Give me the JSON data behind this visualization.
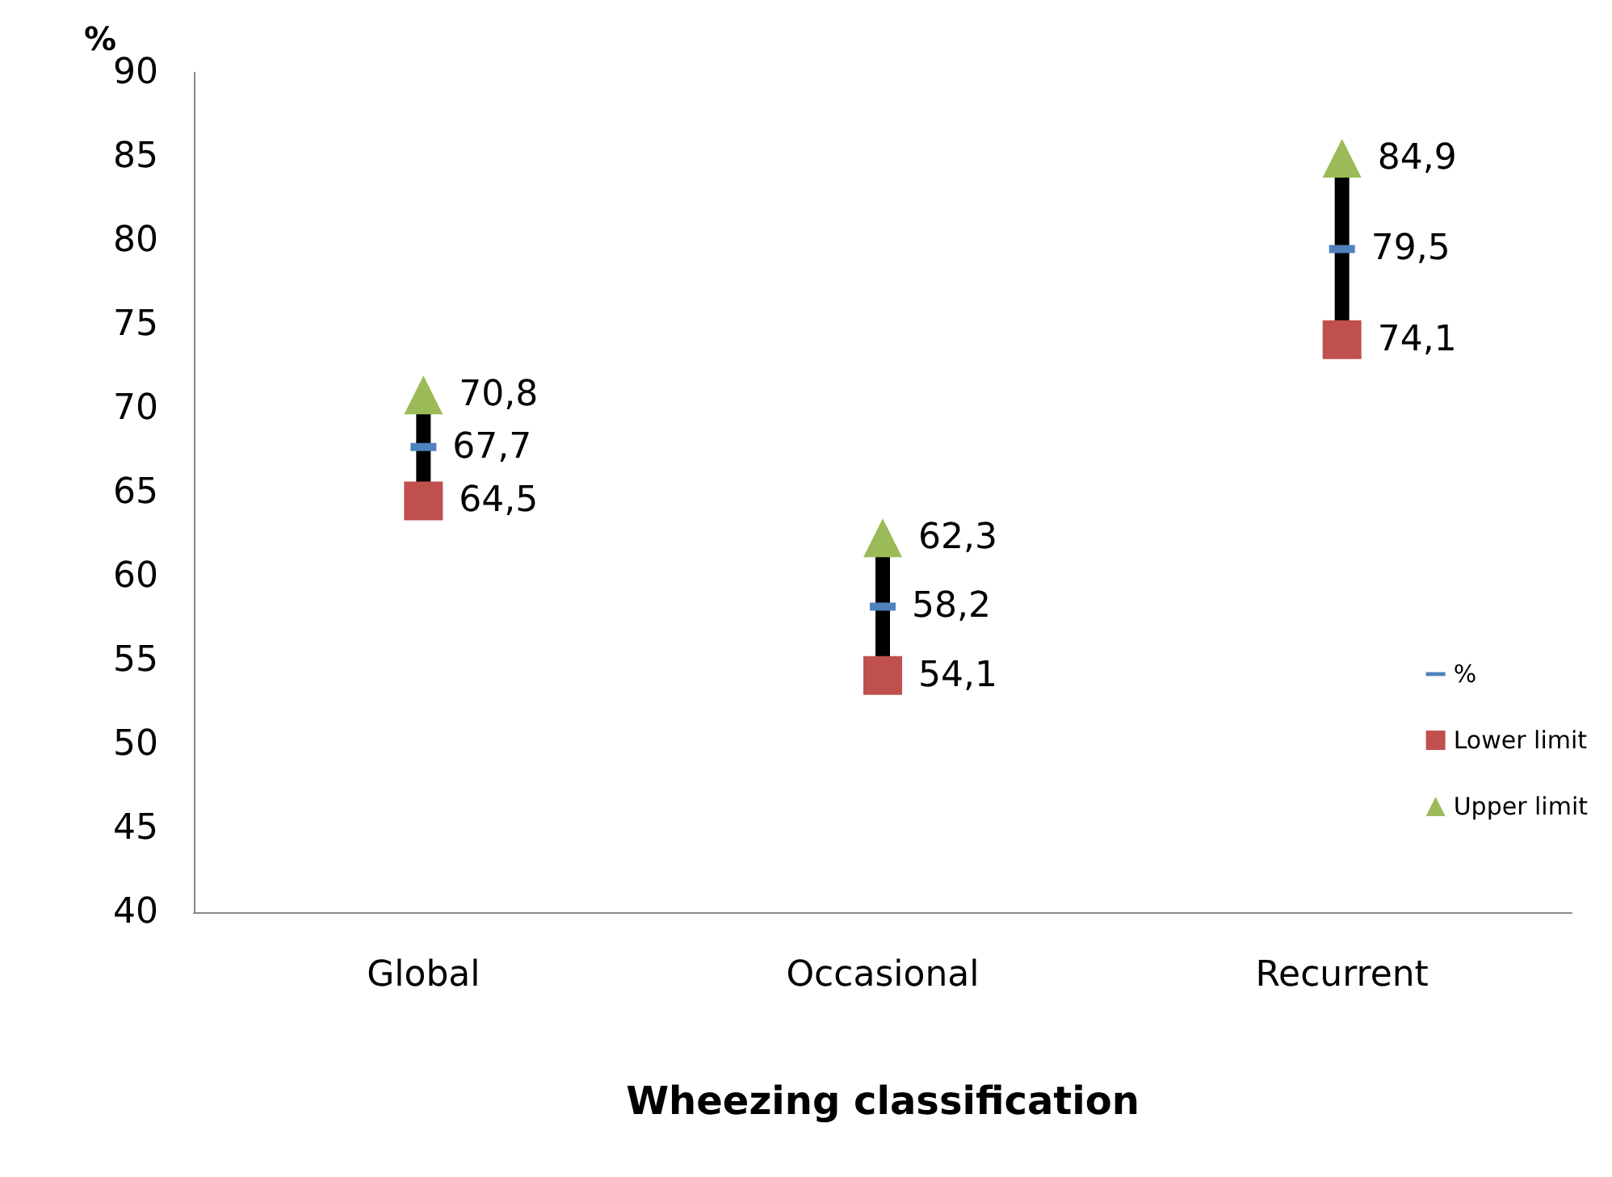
{
  "chart_data": {
    "type": "scatter",
    "xlabel": "Wheezing classification",
    "ylabel": "%",
    "categories": [
      "Global",
      "Occasional",
      "Recurrent"
    ],
    "series": [
      {
        "name": "%",
        "color": "#4f81bd",
        "values": [
          67.7,
          58.2,
          79.5
        ],
        "value_labels": [
          "67,7",
          "58,2",
          "79,5"
        ]
      },
      {
        "name": "Lower limit",
        "color": "#c0504d",
        "marker": "square",
        "values": [
          64.5,
          54.1,
          74.1
        ],
        "value_labels": [
          "64,5",
          "54,1",
          "74,1"
        ]
      },
      {
        "name": "Upper limit",
        "color": "#9bbb59",
        "marker": "triangle",
        "values": [
          70.8,
          62.3,
          84.9
        ],
        "value_labels": [
          "70,8",
          "62,3",
          "84,9"
        ]
      }
    ],
    "ylim": [
      40,
      90
    ],
    "yticks": [
      40,
      45,
      50,
      55,
      60,
      65,
      70,
      75,
      80,
      85,
      90
    ],
    "grid": false,
    "legend": "right"
  }
}
